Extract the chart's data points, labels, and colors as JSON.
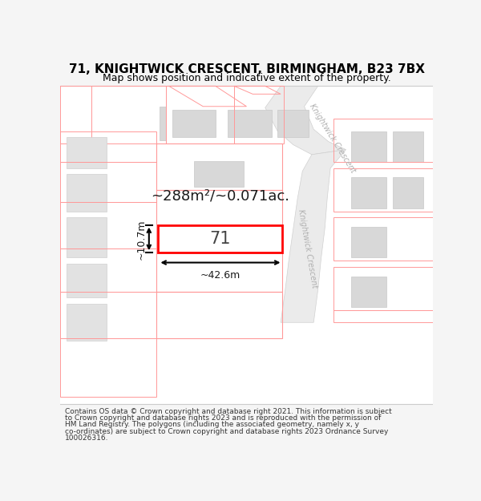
{
  "title": "71, KNIGHTWICK CRESCENT, BIRMINGHAM, B23 7BX",
  "subtitle": "Map shows position and indicative extent of the property.",
  "footer_lines": [
    "Contains OS data © Crown copyright and database right 2021. This information is subject",
    "to Crown copyright and database rights 2023 and is reproduced with the permission of",
    "HM Land Registry. The polygons (including the associated geometry, namely x, y",
    "co-ordinates) are subject to Crown copyright and database rights 2023 Ordnance Survey",
    "100026316."
  ],
  "area_label": "~288m²/~0.071ac.",
  "width_label": "~42.6m",
  "height_label": "~10.7m",
  "plot_number": "71",
  "bg_color": "#f5f5f5",
  "map_bg": "#ffffff",
  "plot_border": "#ff0000",
  "outline_color": "#ff9999",
  "dim_color": "#000000",
  "title_color": "#000000",
  "footer_color": "#333333",
  "road_fill": "#ebebeb",
  "road_edge": "#d0d0d0",
  "building_fill": "#d8d8d8",
  "building_edge": "#c8c8c8"
}
